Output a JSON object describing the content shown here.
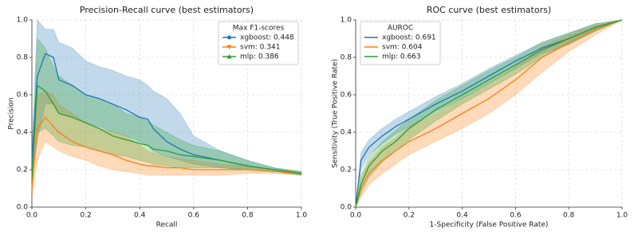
{
  "chart_data": [
    {
      "type": "line",
      "title": "Precision-Recall curve (best estimators)",
      "xlabel": "Recall",
      "ylabel": "Precision",
      "legend_title": "Max F1-scores",
      "legend": "upper right",
      "grid": true,
      "xlim": [
        0,
        1
      ],
      "ylim": [
        0,
        1
      ],
      "xticks": [
        {
          "value": 0,
          "label": "0.0"
        },
        0.2,
        0.4,
        0.6,
        0.8,
        {
          "value": 1,
          "label": "1.0"
        }
      ],
      "yticks": [
        {
          "value": 0,
          "label": "0.0"
        },
        0.2,
        0.4,
        0.6,
        0.8,
        {
          "value": 1,
          "label": "1.0"
        }
      ],
      "x": [
        0,
        0.02,
        0.05,
        0.08,
        0.1,
        0.15,
        0.2,
        0.25,
        0.3,
        0.35,
        0.4,
        0.43,
        0.45,
        0.5,
        0.55,
        0.6,
        0.7,
        0.8,
        0.9,
        1.0
      ],
      "series": [
        {
          "name": "xgboost: 0.448",
          "color": "#1f77b4",
          "marker": "circle",
          "values": [
            0.25,
            0.7,
            0.82,
            0.8,
            0.68,
            0.65,
            0.6,
            0.58,
            0.55,
            0.52,
            0.48,
            0.47,
            0.42,
            0.35,
            0.31,
            0.28,
            0.25,
            0.22,
            0.2,
            0.18
          ],
          "upper": [
            0.3,
            1.0,
            0.95,
            0.95,
            0.88,
            0.85,
            0.78,
            0.75,
            0.73,
            0.7,
            0.68,
            0.65,
            0.62,
            0.58,
            0.5,
            0.38,
            0.3,
            0.25,
            0.21,
            0.19
          ],
          "lower": [
            0.15,
            0.35,
            0.55,
            0.55,
            0.5,
            0.48,
            0.45,
            0.43,
            0.4,
            0.38,
            0.35,
            0.33,
            0.3,
            0.27,
            0.25,
            0.23,
            0.21,
            0.2,
            0.19,
            0.17
          ]
        },
        {
          "name": "svm: 0.341",
          "color": "#ff7f0e",
          "marker": "triangle-down",
          "values": [
            0.1,
            0.42,
            0.48,
            0.43,
            0.4,
            0.35,
            0.32,
            0.3,
            0.28,
            0.25,
            0.23,
            0.22,
            0.22,
            0.21,
            0.21,
            0.2,
            0.2,
            0.2,
            0.19,
            0.18
          ],
          "upper": [
            0.15,
            0.6,
            0.62,
            0.6,
            0.55,
            0.5,
            0.45,
            0.42,
            0.4,
            0.38,
            0.33,
            0.3,
            0.29,
            0.27,
            0.26,
            0.25,
            0.23,
            0.22,
            0.2,
            0.19
          ],
          "lower": [
            0.05,
            0.25,
            0.35,
            0.32,
            0.3,
            0.27,
            0.25,
            0.22,
            0.2,
            0.19,
            0.18,
            0.17,
            0.17,
            0.17,
            0.17,
            0.17,
            0.17,
            0.18,
            0.18,
            0.17
          ]
        },
        {
          "name": "mlp: 0.386",
          "color": "#2ca02c",
          "marker": "triangle-up",
          "values": [
            0.15,
            0.65,
            0.62,
            0.55,
            0.5,
            0.48,
            0.45,
            0.42,
            0.38,
            0.36,
            0.34,
            0.33,
            0.31,
            0.3,
            0.28,
            0.27,
            0.25,
            0.22,
            0.2,
            0.18
          ],
          "upper": [
            0.2,
            0.9,
            0.85,
            0.75,
            0.7,
            0.65,
            0.6,
            0.58,
            0.55,
            0.5,
            0.48,
            0.46,
            0.44,
            0.4,
            0.36,
            0.33,
            0.3,
            0.25,
            0.21,
            0.19
          ],
          "lower": [
            0.1,
            0.4,
            0.42,
            0.38,
            0.35,
            0.33,
            0.32,
            0.3,
            0.28,
            0.27,
            0.25,
            0.24,
            0.23,
            0.22,
            0.21,
            0.21,
            0.21,
            0.2,
            0.19,
            0.17
          ]
        }
      ]
    },
    {
      "type": "line",
      "title": "ROC curve (best estimators)",
      "xlabel": "1-Specificity (False Positive Rate)",
      "ylabel": "Sensitivity (True Positive Rate)",
      "legend_title": "AUROC",
      "legend": "upper left",
      "grid": true,
      "xlim": [
        0,
        1
      ],
      "ylim": [
        0,
        1
      ],
      "xticks": [
        {
          "value": 0,
          "label": "0.0"
        },
        0.2,
        0.4,
        0.6,
        0.8,
        {
          "value": 1,
          "label": "1.0"
        }
      ],
      "yticks": [
        {
          "value": 0,
          "label": "0.0"
        },
        0.2,
        0.4,
        0.6,
        0.8,
        {
          "value": 1,
          "label": "1.0"
        }
      ],
      "x": [
        0,
        0.02,
        0.05,
        0.1,
        0.15,
        0.2,
        0.3,
        0.4,
        0.5,
        0.6,
        0.7,
        0.8,
        0.9,
        1.0
      ],
      "series": [
        {
          "name": "xgboost: 0.691",
          "color": "#1f77b4",
          "values": [
            0,
            0.25,
            0.32,
            0.38,
            0.43,
            0.47,
            0.55,
            0.62,
            0.7,
            0.78,
            0.85,
            0.9,
            0.96,
            1.0
          ],
          "upper": [
            0,
            0.29,
            0.36,
            0.42,
            0.47,
            0.51,
            0.59,
            0.66,
            0.74,
            0.81,
            0.88,
            0.93,
            0.98,
            1.0
          ],
          "lower": [
            0,
            0.2,
            0.28,
            0.34,
            0.39,
            0.43,
            0.51,
            0.58,
            0.66,
            0.74,
            0.82,
            0.87,
            0.94,
            1.0
          ]
        },
        {
          "name": "svm: 0.604",
          "color": "#ff7f0e",
          "values": [
            0,
            0.1,
            0.18,
            0.25,
            0.3,
            0.35,
            0.42,
            0.5,
            0.58,
            0.68,
            0.8,
            0.88,
            0.95,
            1.0
          ],
          "upper": [
            0,
            0.16,
            0.24,
            0.32,
            0.37,
            0.43,
            0.5,
            0.58,
            0.66,
            0.75,
            0.86,
            0.92,
            0.97,
            1.0
          ],
          "lower": [
            0,
            0.05,
            0.12,
            0.18,
            0.23,
            0.28,
            0.35,
            0.42,
            0.5,
            0.6,
            0.72,
            0.83,
            0.92,
            1.0
          ]
        },
        {
          "name": "mlp: 0.663",
          "color": "#2ca02c",
          "values": [
            0,
            0.12,
            0.22,
            0.3,
            0.35,
            0.42,
            0.52,
            0.6,
            0.68,
            0.76,
            0.84,
            0.9,
            0.96,
            1.0
          ],
          "upper": [
            0,
            0.17,
            0.27,
            0.35,
            0.41,
            0.47,
            0.57,
            0.65,
            0.73,
            0.8,
            0.88,
            0.93,
            0.98,
            1.0
          ],
          "lower": [
            0,
            0.07,
            0.16,
            0.24,
            0.3,
            0.36,
            0.46,
            0.55,
            0.63,
            0.71,
            0.8,
            0.87,
            0.94,
            1.0
          ]
        }
      ]
    }
  ]
}
